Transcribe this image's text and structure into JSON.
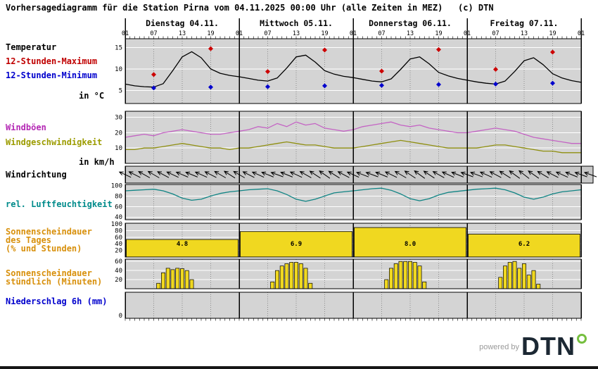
{
  "title": "Vorhersagediagramm für die Station Pirna vom 04.11.2025 00:00 Uhr (alle Zeiten in MEZ)   (c) DTN",
  "footer": {
    "powered_by": "powered by",
    "brand": "DTN"
  },
  "left_labels": {
    "temperature": "Temperatur",
    "max12": "12-Stunden-Maximum",
    "min12": "12-Stunden-Minimum",
    "temp_unit": "in °C",
    "gusts": "Windböen",
    "wind_speed": "Windgeschwindigkeit",
    "wind_unit": "in km/h",
    "wind_dir": "Windrichtung",
    "humidity": "rel. Luftfeuchtigkeit",
    "sun_day_1": "Sonnenscheindauer",
    "sun_day_2": "des Tages",
    "sun_day_3": "(% und Stunden)",
    "sun_hour_1": "Sonnenscheindauer",
    "sun_hour_2": "stündlich (Minuten)",
    "precip": "Niederschlag 6h (mm)"
  },
  "colors": {
    "temperature_line": "#000000",
    "max_marker": "#cc0000",
    "min_marker": "#0000cd",
    "gusts_line": "#c464c4",
    "wind_speed_line": "#8f8f10",
    "humidity_line": "#108484",
    "sunshine_bar": "#f0d820",
    "panel_bg": "#d4d4d4",
    "dir_band_bg": "#c8c8c8"
  },
  "x_axis": {
    "days": [
      "Dienstag 04.11.",
      "Mittwoch 05.11.",
      "Donnerstag 06.11.",
      "Freitag 07.11."
    ],
    "hour_labels": [
      "01",
      "07",
      "13",
      "19"
    ],
    "end_label": "01"
  },
  "chart_data": [
    {
      "id": "temperature",
      "type": "line",
      "title": "Temperatur in °C",
      "ylim": [
        2,
        17
      ],
      "yticks": [
        5,
        10,
        15
      ],
      "x_step": 2,
      "series": [
        {
          "id": "temperature",
          "name": "Temperatur",
          "color_key": "temperature_line",
          "values": [
            6.5,
            6.1,
            5.9,
            5.8,
            6.6,
            9.6,
            12.8,
            14,
            12.6,
            10,
            9,
            8.5,
            8.2,
            7.8,
            7.4,
            7.2,
            7.9,
            10.2,
            12.8,
            13.2,
            11.6,
            9.6,
            8.8,
            8.3,
            8,
            7.6,
            7.2,
            7,
            7.7,
            9.9,
            12.3,
            12.8,
            11.2,
            9.2,
            8.4,
            7.8,
            7.4,
            7,
            6.7,
            6.5,
            7.2,
            9.4,
            11.9,
            12.6,
            11,
            8.9,
            7.9,
            7.3,
            6.9
          ]
        }
      ],
      "markers": [
        {
          "id": "max-12h",
          "name": "12-Stunden-Maximum",
          "color_key": "max_marker",
          "t": [
            6,
            18,
            30,
            42,
            54,
            66,
            78,
            90
          ],
          "values": [
            8.7,
            14.7,
            9.4,
            14.4,
            9.5,
            14.5,
            9.9,
            13.9
          ]
        },
        {
          "id": "min-12h",
          "name": "12-Stunden-Minimum",
          "color_key": "min_marker",
          "t": [
            6,
            18,
            30,
            42,
            54,
            66,
            78,
            90
          ],
          "values": [
            5.6,
            5.8,
            5.9,
            6.1,
            6.2,
            6.4,
            6.5,
            6.7
          ]
        }
      ]
    },
    {
      "id": "wind",
      "type": "line",
      "title": "Windböen / Windgeschwindigkeit in km/h",
      "ylim": [
        0,
        34
      ],
      "yticks": [
        10,
        20,
        30
      ],
      "x_step": 2,
      "series": [
        {
          "id": "gusts",
          "name": "Windböen",
          "color_key": "gusts_line",
          "values": [
            17,
            18,
            19,
            18,
            20,
            21,
            22,
            21,
            20,
            19,
            19,
            20,
            21,
            22,
            24,
            23,
            26,
            24,
            27,
            25,
            26,
            23,
            22,
            21,
            22,
            24,
            25,
            26,
            27,
            25,
            24,
            25,
            23,
            22,
            21,
            20,
            20,
            21,
            22,
            23,
            22,
            21,
            19,
            17,
            16,
            15,
            14,
            13,
            13
          ]
        },
        {
          "id": "wind-speed",
          "name": "Windgeschwindigkeit",
          "color_key": "wind_speed_line",
          "values": [
            9,
            9,
            10,
            10,
            11,
            12,
            13,
            12,
            11,
            10,
            10,
            9,
            10,
            10,
            11,
            12,
            13,
            14,
            13,
            12,
            12,
            11,
            10,
            10,
            10,
            11,
            12,
            13,
            14,
            15,
            14,
            13,
            12,
            11,
            10,
            10,
            10,
            10,
            11,
            12,
            12,
            11,
            10,
            9,
            8,
            8,
            7,
            7,
            7
          ]
        }
      ]
    },
    {
      "id": "wind_direction",
      "type": "arrows",
      "title": "Windrichtung",
      "x_step": 2,
      "from_degrees": [
        115,
        117,
        119,
        120,
        118,
        115,
        113,
        112,
        114,
        117,
        120,
        122,
        120,
        117,
        114,
        112,
        110,
        112,
        115,
        119,
        123,
        125,
        122,
        118,
        114,
        111,
        110,
        112,
        116,
        120,
        124,
        126,
        123,
        119,
        115,
        112,
        110,
        111,
        114,
        118,
        122,
        126,
        128,
        125,
        121,
        117,
        114,
        112,
        110
      ]
    },
    {
      "id": "humidity",
      "type": "line",
      "title": "rel. Luftfeuchtigkeit (%)",
      "ylim": [
        35,
        102
      ],
      "yticks": [
        40,
        60,
        80,
        100
      ],
      "x_step": 2,
      "series": [
        {
          "id": "humidity",
          "name": "rel. Luftfeuchtigkeit",
          "color_key": "humidity_line",
          "values": [
            90,
            91,
            92,
            93,
            90,
            84,
            76,
            72,
            74,
            80,
            85,
            88,
            90,
            92,
            93,
            94,
            90,
            83,
            74,
            70,
            74,
            80,
            86,
            88,
            90,
            92,
            94,
            95,
            91,
            84,
            75,
            71,
            75,
            82,
            87,
            89,
            91,
            93,
            94,
            95,
            92,
            86,
            78,
            74,
            78,
            84,
            88,
            90,
            92
          ]
        }
      ]
    },
    {
      "id": "sunshine_daily",
      "type": "bar",
      "title": "Sonnenscheindauer des Tages (% und Stunden)",
      "ylim": [
        0,
        102
      ],
      "yticks": [
        20,
        40,
        60,
        80,
        100
      ],
      "percent": [
        53,
        77,
        89,
        69
      ],
      "hour_labels": [
        "4.8",
        "6.9",
        "8.0",
        "6.2"
      ]
    },
    {
      "id": "sunshine_hourly",
      "type": "bar",
      "title": "Sonnenscheindauer stündlich (Minuten)",
      "ylim": [
        0,
        65
      ],
      "yticks": [
        20,
        40,
        60
      ],
      "bars": [
        [
          7,
          12
        ],
        [
          8,
          35
        ],
        [
          9,
          45
        ],
        [
          10,
          42
        ],
        [
          11,
          45
        ],
        [
          12,
          44
        ],
        [
          13,
          40
        ],
        [
          14,
          20
        ],
        [
          31,
          15
        ],
        [
          32,
          40
        ],
        [
          33,
          50
        ],
        [
          34,
          55
        ],
        [
          35,
          58
        ],
        [
          36,
          58
        ],
        [
          37,
          55
        ],
        [
          38,
          45
        ],
        [
          39,
          12
        ],
        [
          55,
          20
        ],
        [
          56,
          45
        ],
        [
          57,
          55
        ],
        [
          58,
          60
        ],
        [
          59,
          60
        ],
        [
          60,
          60
        ],
        [
          61,
          58
        ],
        [
          62,
          50
        ],
        [
          63,
          15
        ],
        [
          79,
          25
        ],
        [
          80,
          50
        ],
        [
          81,
          58
        ],
        [
          82,
          60
        ],
        [
          83,
          45
        ],
        [
          84,
          55
        ],
        [
          85,
          30
        ],
        [
          86,
          40
        ],
        [
          87,
          10
        ]
      ]
    },
    {
      "id": "precipitation",
      "type": "bar",
      "title": "Niederschlag 6h (mm)",
      "ylim": [
        0,
        5
      ],
      "yticks": [
        0
      ],
      "values": []
    }
  ]
}
